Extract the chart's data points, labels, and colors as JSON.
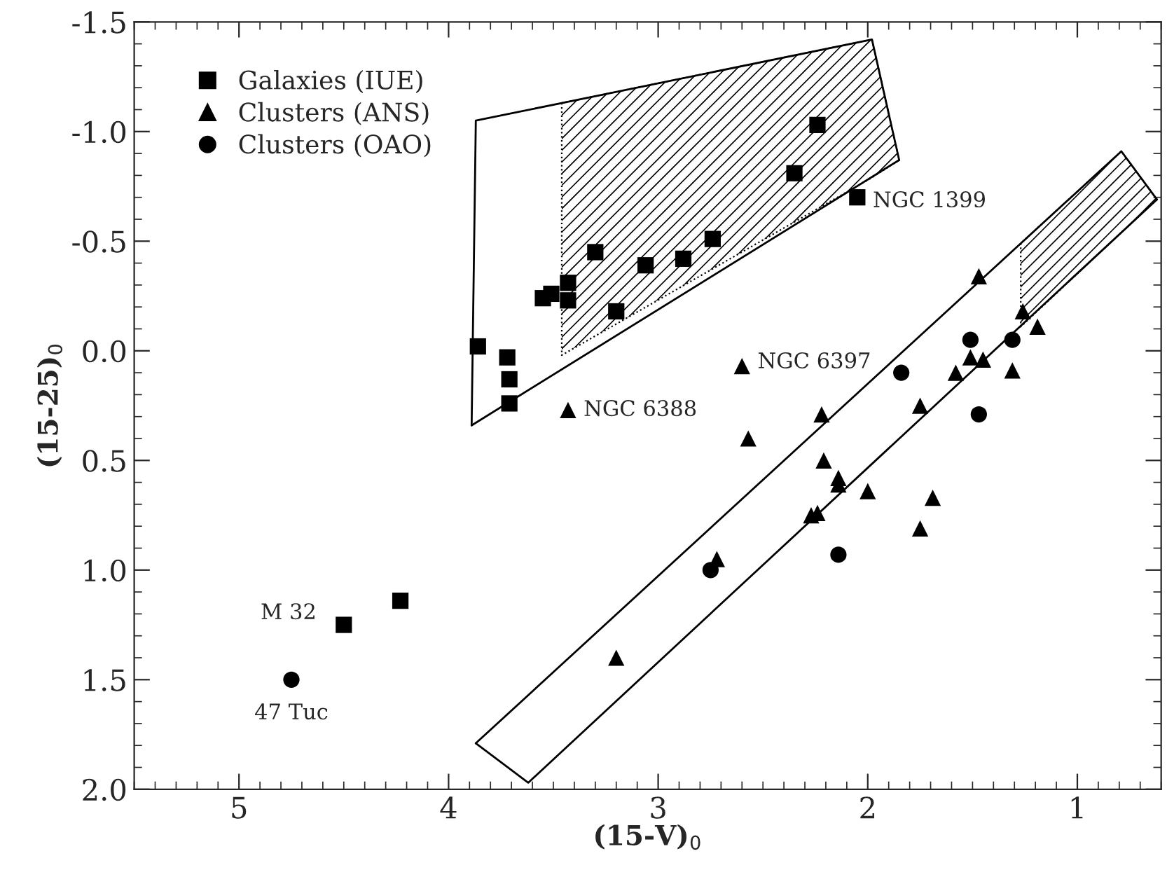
{
  "chart_data": {
    "type": "scatter",
    "xlabel": "(15-V)$_{0}$",
    "ylabel": "(15-25)$_{0}$",
    "xlim": [
      5.5,
      0.6
    ],
    "ylim": [
      2.0,
      -1.5
    ],
    "xticks": [
      5,
      4,
      3,
      2,
      1
    ],
    "yticks": [
      {
        "value": -1.5,
        "label": "-1.5"
      },
      {
        "value": -1.0,
        "label": "-1.0"
      },
      {
        "value": -0.5,
        "label": "-0.5"
      },
      {
        "value": 0.0,
        "label": "0.0"
      },
      {
        "value": 0.5,
        "label": "0.5"
      },
      {
        "value": 1.0,
        "label": "1.0"
      },
      {
        "value": 1.5,
        "label": "1.5"
      },
      {
        "value": 2.0,
        "label": "2.0"
      }
    ],
    "grid": false,
    "legend": "top left",
    "series": [
      {
        "type": "line",
        "color": "#000000",
        "line_style": "solid",
        "marker": "none",
        "x": [
          3.89,
          3.87,
          3.46,
          1.98,
          1.85
        ],
        "values": [
          0.34,
          -1.05,
          -1.13,
          -1.42,
          -0.87
        ],
        "upper": [
          null,
          null,
          -1.13,
          -1.42,
          -0.87
        ],
        "lower": [
          null,
          null,
          0.02,
          -0.79,
          -0.87
        ]
      },
      {
        "type": "line",
        "color": "#000000",
        "line_style": "solid",
        "marker": "none",
        "x": [
          3.89,
          1.85
        ],
        "values": [
          0.34,
          -0.87
        ]
      },
      {
        "type": "line",
        "color": "#000000",
        "line_style": "solid",
        "marker": "none",
        "x": [
          3.87,
          1.27,
          0.79,
          0.62
        ],
        "values": [
          1.79,
          -0.49,
          -0.91,
          -0.69
        ],
        "upper": [
          null,
          -0.49,
          -0.91,
          -0.69
        ],
        "lower": [
          null,
          -0.11,
          -0.54,
          -0.69
        ]
      },
      {
        "type": "line",
        "color": "#000000",
        "line_style": "solid",
        "marker": "none",
        "x": [
          3.87,
          3.62,
          0.62
        ],
        "values": [
          1.79,
          1.97,
          -0.69
        ]
      },
      {
        "name": "Galaxies (IUE)",
        "color": "#000000",
        "marker": "square",
        "x": [
          3.86,
          3.72,
          3.71,
          3.71,
          3.55,
          3.51,
          3.43,
          3.43,
          3.3,
          3.2,
          3.06,
          2.88,
          2.74,
          2.35,
          2.24,
          2.05,
          4.5,
          4.23
        ],
        "values": [
          -0.02,
          0.03,
          0.13,
          0.24,
          -0.24,
          -0.26,
          -0.31,
          -0.23,
          -0.45,
          -0.18,
          -0.39,
          -0.42,
          -0.51,
          -0.81,
          -1.03,
          -0.7,
          1.25,
          1.14
        ]
      },
      {
        "name": "Clusters (ANS)",
        "color": "#000000",
        "marker": "triangle",
        "x": [
          3.43,
          2.6,
          1.47,
          1.26,
          1.19,
          1.51,
          1.45,
          1.58,
          1.31,
          1.75,
          2.22,
          2.57,
          2.21,
          2.14,
          2.14,
          2.0,
          1.69,
          2.27,
          2.24,
          1.75,
          2.72,
          3.2
        ],
        "values": [
          0.27,
          0.07,
          -0.34,
          -0.18,
          -0.11,
          0.03,
          0.04,
          0.1,
          0.09,
          0.25,
          0.29,
          0.4,
          0.5,
          0.58,
          0.61,
          0.64,
          0.67,
          0.75,
          0.74,
          0.81,
          0.95,
          1.4
        ]
      },
      {
        "name": "Clusters (OAO)",
        "color": "#000000",
        "marker": "circle",
        "x": [
          4.75,
          1.84,
          1.51,
          1.31,
          1.47,
          2.14,
          2.75
        ],
        "values": [
          1.5,
          0.1,
          -0.05,
          -0.05,
          0.29,
          0.93,
          1.0
        ]
      }
    ],
    "annotations": [
      {
        "text": "NGC 1399",
        "x": 2.05,
        "y": -0.7
      },
      {
        "text": "NGC 6397",
        "x": 2.6,
        "y": 0.07
      },
      {
        "text": "NGC 6388",
        "x": 3.43,
        "y": 0.27
      },
      {
        "text": "M 32",
        "x": 4.5,
        "y": 1.25
      },
      {
        "text": "47 Tuc",
        "x": 4.75,
        "y": 1.5
      }
    ]
  }
}
